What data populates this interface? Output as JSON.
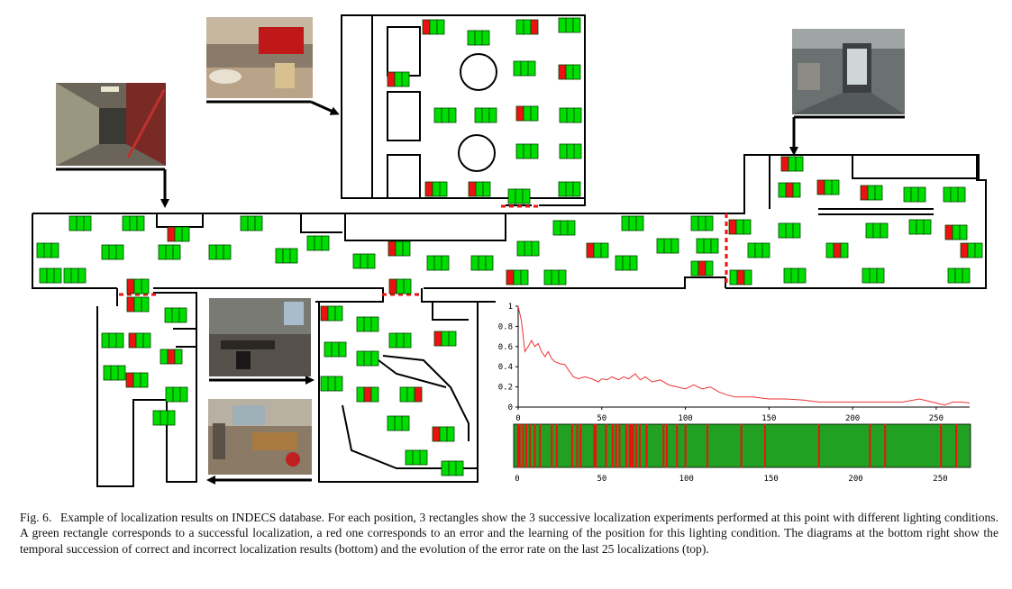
{
  "caption": {
    "label": "Fig. 6.",
    "text": "Example of localization results on INDECS database. For each position, 3 rectangles show the 3 successive localization experiments performed at this point with different lighting conditions. A green rectangle corresponds to a successful localization, a red one corresponds to an error and the learning of the position for this lighting condition. The diagrams at the bottom right show the temporal succession of correct and incorrect localization results (bottom) and the evolution of the error rate on the last 25 localizations (top)."
  },
  "colors": {
    "success": "#00dd00",
    "error": "#ee1111",
    "curve": "#ee3333",
    "timeline_bg": "#22a022",
    "door": "#ee1111"
  },
  "map_markers": {
    "comment_free": false,
    "cells": [
      [
        "G",
        "G",
        "G"
      ],
      [
        "R",
        "G",
        "G"
      ],
      [
        "G",
        "G",
        "G"
      ],
      [
        "G",
        "G",
        "R"
      ],
      [
        "G",
        "G",
        "G"
      ]
    ]
  },
  "chart_data": [
    {
      "type": "line",
      "title": "",
      "xlabel": "",
      "ylabel": "",
      "xlim": [
        0,
        270
      ],
      "ylim": [
        0,
        1
      ],
      "xticks": [
        0,
        50,
        100,
        150,
        200,
        250
      ],
      "yticks": [
        0,
        0.2,
        0.4,
        0.6,
        0.8,
        1
      ],
      "ytick_labels": [
        "0",
        "0.2",
        "0.4",
        "0.6",
        "0.8",
        "1"
      ],
      "series": [
        {
          "x": [
            0,
            2,
            4,
            6,
            8,
            10,
            12,
            14,
            16,
            18,
            20,
            22,
            25,
            28,
            30,
            33,
            36,
            40,
            44,
            48,
            50,
            53,
            56,
            60,
            63,
            66,
            70,
            73,
            76,
            80,
            85,
            90,
            95,
            100,
            105,
            110,
            115,
            120,
            125,
            130,
            140,
            150,
            160,
            170,
            180,
            190,
            200,
            210,
            220,
            230,
            240,
            250,
            255,
            260,
            265,
            270
          ],
          "y": [
            1.0,
            0.85,
            0.55,
            0.6,
            0.66,
            0.6,
            0.63,
            0.55,
            0.5,
            0.55,
            0.48,
            0.45,
            0.43,
            0.42,
            0.37,
            0.3,
            0.28,
            0.3,
            0.28,
            0.25,
            0.28,
            0.27,
            0.3,
            0.27,
            0.3,
            0.28,
            0.33,
            0.27,
            0.3,
            0.25,
            0.27,
            0.22,
            0.2,
            0.18,
            0.22,
            0.18,
            0.2,
            0.15,
            0.12,
            0.1,
            0.1,
            0.08,
            0.08,
            0.07,
            0.05,
            0.05,
            0.05,
            0.05,
            0.05,
            0.05,
            0.08,
            0.04,
            0.02,
            0.05,
            0.05,
            0.04
          ]
        }
      ]
    },
    {
      "type": "bar",
      "title": "",
      "xlim": [
        0,
        270
      ],
      "xticks": [
        0,
        50,
        100,
        150,
        200,
        250
      ],
      "error_positions": [
        2,
        3,
        5,
        7,
        9,
        12,
        15,
        22,
        25,
        34,
        37,
        39,
        47,
        48,
        54,
        58,
        60,
        62,
        66,
        68,
        69,
        70,
        72,
        74,
        78,
        88,
        90,
        96,
        101,
        114,
        134,
        148,
        180,
        210,
        219,
        252,
        261
      ],
      "background": "success",
      "marker": "error"
    }
  ]
}
